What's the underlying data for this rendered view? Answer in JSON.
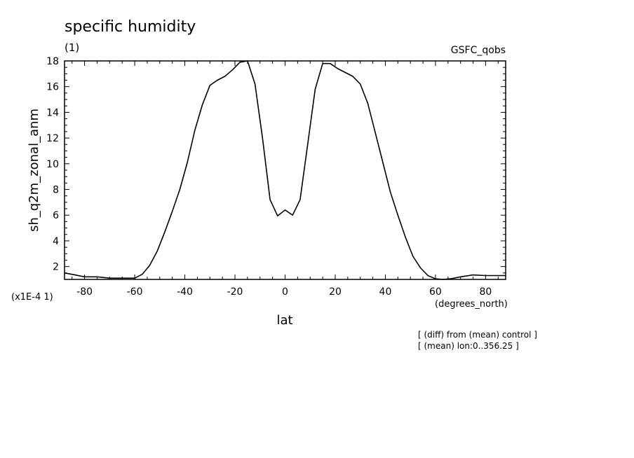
{
  "chart_data": {
    "type": "line",
    "title": "specific humidity",
    "panel_label": "(1)",
    "dataset_label": "GSFC_qobs",
    "xlabel": "lat",
    "x_units": "(degrees_north)",
    "ylabel": "sh_q2m_zonal_anm",
    "y_scale_note": "(x1E-4 1)",
    "xlim": [
      -88,
      88
    ],
    "ylim": [
      1,
      18
    ],
    "x_ticks": [
      -80,
      -60,
      -40,
      -20,
      0,
      20,
      40,
      60,
      80
    ],
    "x_tick_labels": [
      "-80",
      "-60",
      "-40",
      "-20",
      "0",
      "20",
      "40",
      "60",
      "80"
    ],
    "y_ticks": [
      2,
      4,
      6,
      8,
      10,
      12,
      14,
      16,
      18
    ],
    "y_tick_labels": [
      "2",
      "4",
      "6",
      "8",
      "10",
      "12",
      "14",
      "16",
      "18"
    ],
    "grid": false,
    "annotations": [
      "[ (diff) from (mean) control ]",
      "[ (mean) lon:0..356.25 ]"
    ],
    "series": [
      {
        "x": [
          -88,
          -85,
          -80,
          -75,
          -70,
          -65,
          -60,
          -57,
          -54,
          -51,
          -48,
          -45,
          -42,
          -39,
          -36,
          -33,
          -30,
          -27,
          -24,
          -21,
          -18,
          -15,
          -12,
          -9,
          -6,
          -3,
          0,
          3,
          6,
          9,
          12,
          15,
          18,
          21,
          24,
          27,
          30,
          33,
          36,
          39,
          42,
          45,
          48,
          51,
          54,
          57,
          60,
          63,
          66,
          70,
          75,
          80,
          85,
          88
        ],
        "y": [
          1.5,
          1.4,
          1.2,
          1.2,
          1.1,
          1.1,
          1.1,
          1.4,
          2.1,
          3.2,
          4.7,
          6.3,
          8.0,
          10.1,
          12.6,
          14.6,
          16.1,
          16.5,
          16.8,
          17.3,
          17.9,
          18.0,
          16.2,
          12.0,
          7.2,
          5.95,
          6.4,
          6.0,
          7.2,
          11.5,
          15.8,
          17.8,
          17.8,
          17.4,
          17.1,
          16.8,
          16.2,
          14.7,
          12.4,
          10.1,
          7.8,
          6.0,
          4.3,
          2.8,
          1.9,
          1.3,
          1.05,
          1.0,
          1.05,
          1.2,
          1.35,
          1.3,
          1.3,
          1.3
        ]
      }
    ]
  }
}
